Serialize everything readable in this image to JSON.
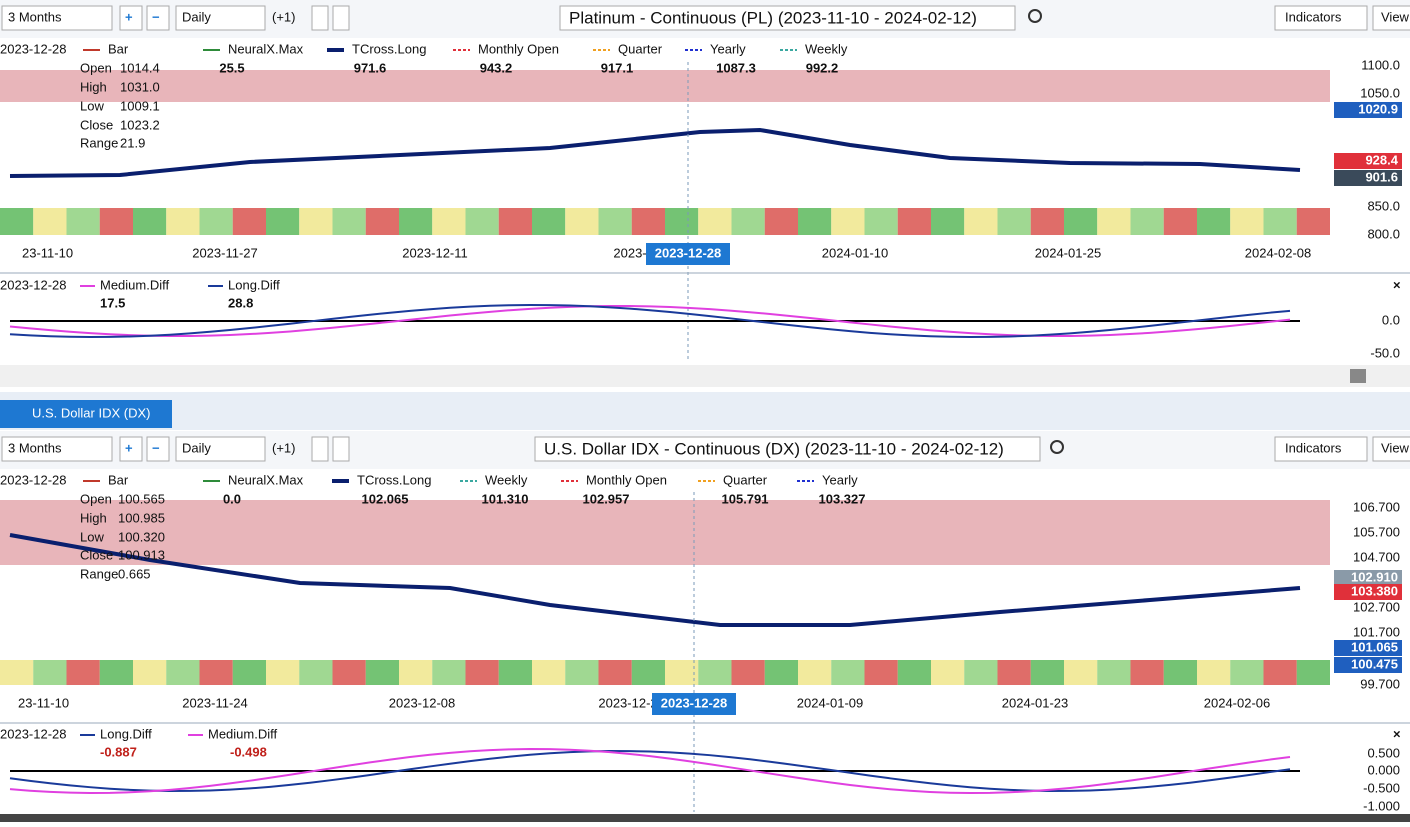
{
  "panels": [
    {
      "toolbar": {
        "period": "3 Months",
        "interval": "Daily",
        "offset": "(+1)",
        "title": "Platinum - Continuous (PL) (2023-11-10 - 2024-02-12)",
        "indicators": "Indicators",
        "view": "View"
      },
      "legend": {
        "date": "2023-12-28",
        "items": [
          {
            "name": "Bar",
            "color": "#c0392b"
          },
          {
            "name": "NeuralX.Max",
            "value": "25.5",
            "color": "#2e8b3a"
          },
          {
            "name": "TCross.Long",
            "value": "971.6",
            "color": "#0a1f6e"
          },
          {
            "name": "Monthly Open",
            "value": "943.2",
            "color": "#e0303a"
          },
          {
            "name": "Quarter",
            "value": "917.1",
            "color": "#f0a020"
          },
          {
            "name": "Yearly",
            "value": "1087.3",
            "color": "#2030d0"
          },
          {
            "name": "Weekly",
            "value": "992.2",
            "color": "#3aa8a0"
          }
        ]
      },
      "ohlc": [
        {
          "label": "Open",
          "value": "1014.4"
        },
        {
          "label": "High",
          "value": "1031.0"
        },
        {
          "label": "Low",
          "value": "1009.1"
        },
        {
          "label": "Close",
          "value": "1023.2"
        },
        {
          "label": "Range",
          "value": "21.9"
        }
      ],
      "yaxis": [
        "1100.0",
        "1050.0",
        "850.0",
        "800.0"
      ],
      "price_tags": [
        {
          "value": "1020.9",
          "color": "#1f5fbf"
        },
        {
          "value": "928.4",
          "color": "#e0303a"
        },
        {
          "value": "901.6",
          "color": "#3a4a5a"
        }
      ],
      "xaxis": [
        "23-11-10",
        "2023-11-27",
        "2023-12-11",
        "2023-",
        "2024-01-10",
        "2024-01-25",
        "2024-02-08"
      ],
      "cursor_date": "2023-12-28",
      "sub": {
        "date": "2023-12-28",
        "items": [
          {
            "name": "Medium.Diff",
            "value": "17.5",
            "color": "#e040e0"
          },
          {
            "name": "Long.Diff",
            "value": "28.8",
            "color": "#1a3a9a"
          }
        ],
        "yaxis": [
          "0.0",
          "-50.0"
        ]
      }
    },
    {
      "toolbar": {
        "period": "3 Months",
        "interval": "Daily",
        "offset": "(+1)",
        "title": "U.S. Dollar IDX - Continuous (DX) (2023-11-10 - 2024-02-12)",
        "indicators": "Indicators",
        "view": "View"
      },
      "legend": {
        "date": "2023-12-28",
        "items": [
          {
            "name": "Bar",
            "color": "#c0392b"
          },
          {
            "name": "NeuralX.Max",
            "value": "0.0",
            "color": "#2e8b3a"
          },
          {
            "name": "TCross.Long",
            "value": "102.065",
            "color": "#0a1f6e"
          },
          {
            "name": "Weekly",
            "value": "101.310",
            "color": "#3aa8a0"
          },
          {
            "name": "Monthly Open",
            "value": "102.957",
            "color": "#e0303a"
          },
          {
            "name": "Quarter",
            "value": "105.791",
            "color": "#f0a020"
          },
          {
            "name": "Yearly",
            "value": "103.327",
            "color": "#2030d0"
          }
        ]
      },
      "ohlc": [
        {
          "label": "Open",
          "value": "100.565"
        },
        {
          "label": "High",
          "value": "100.985"
        },
        {
          "label": "Low",
          "value": "100.320"
        },
        {
          "label": "Close",
          "value": "100.913"
        },
        {
          "label": "Range",
          "value": "0.665"
        }
      ],
      "yaxis": [
        "106.700",
        "105.700",
        "104.700",
        "102.700",
        "101.700",
        "99.700"
      ],
      "price_tags": [
        {
          "value": "102.910",
          "color": "#8a9aa8"
        },
        {
          "value": "103.380",
          "color": "#e0303a"
        },
        {
          "value": "101.065",
          "color": "#1f5fbf"
        },
        {
          "value": "100.475",
          "color": "#1f5fbf"
        }
      ],
      "xaxis": [
        "23-11-10",
        "2023-11-24",
        "2023-12-08",
        "2023-12-2",
        "2024-01-09",
        "2024-01-23",
        "2024-02-06"
      ],
      "cursor_date": "2023-12-28",
      "sub": {
        "date": "2023-12-28",
        "items": [
          {
            "name": "Long.Diff",
            "value": "-0.887",
            "color": "#1a3a9a"
          },
          {
            "name": "Medium.Diff",
            "value": "-0.498",
            "color": "#e040e0"
          }
        ],
        "yaxis": [
          "0.500",
          "0.000",
          "-0.500",
          "-1.000"
        ]
      }
    }
  ],
  "tab": "U.S. Dollar IDX (DX)"
}
